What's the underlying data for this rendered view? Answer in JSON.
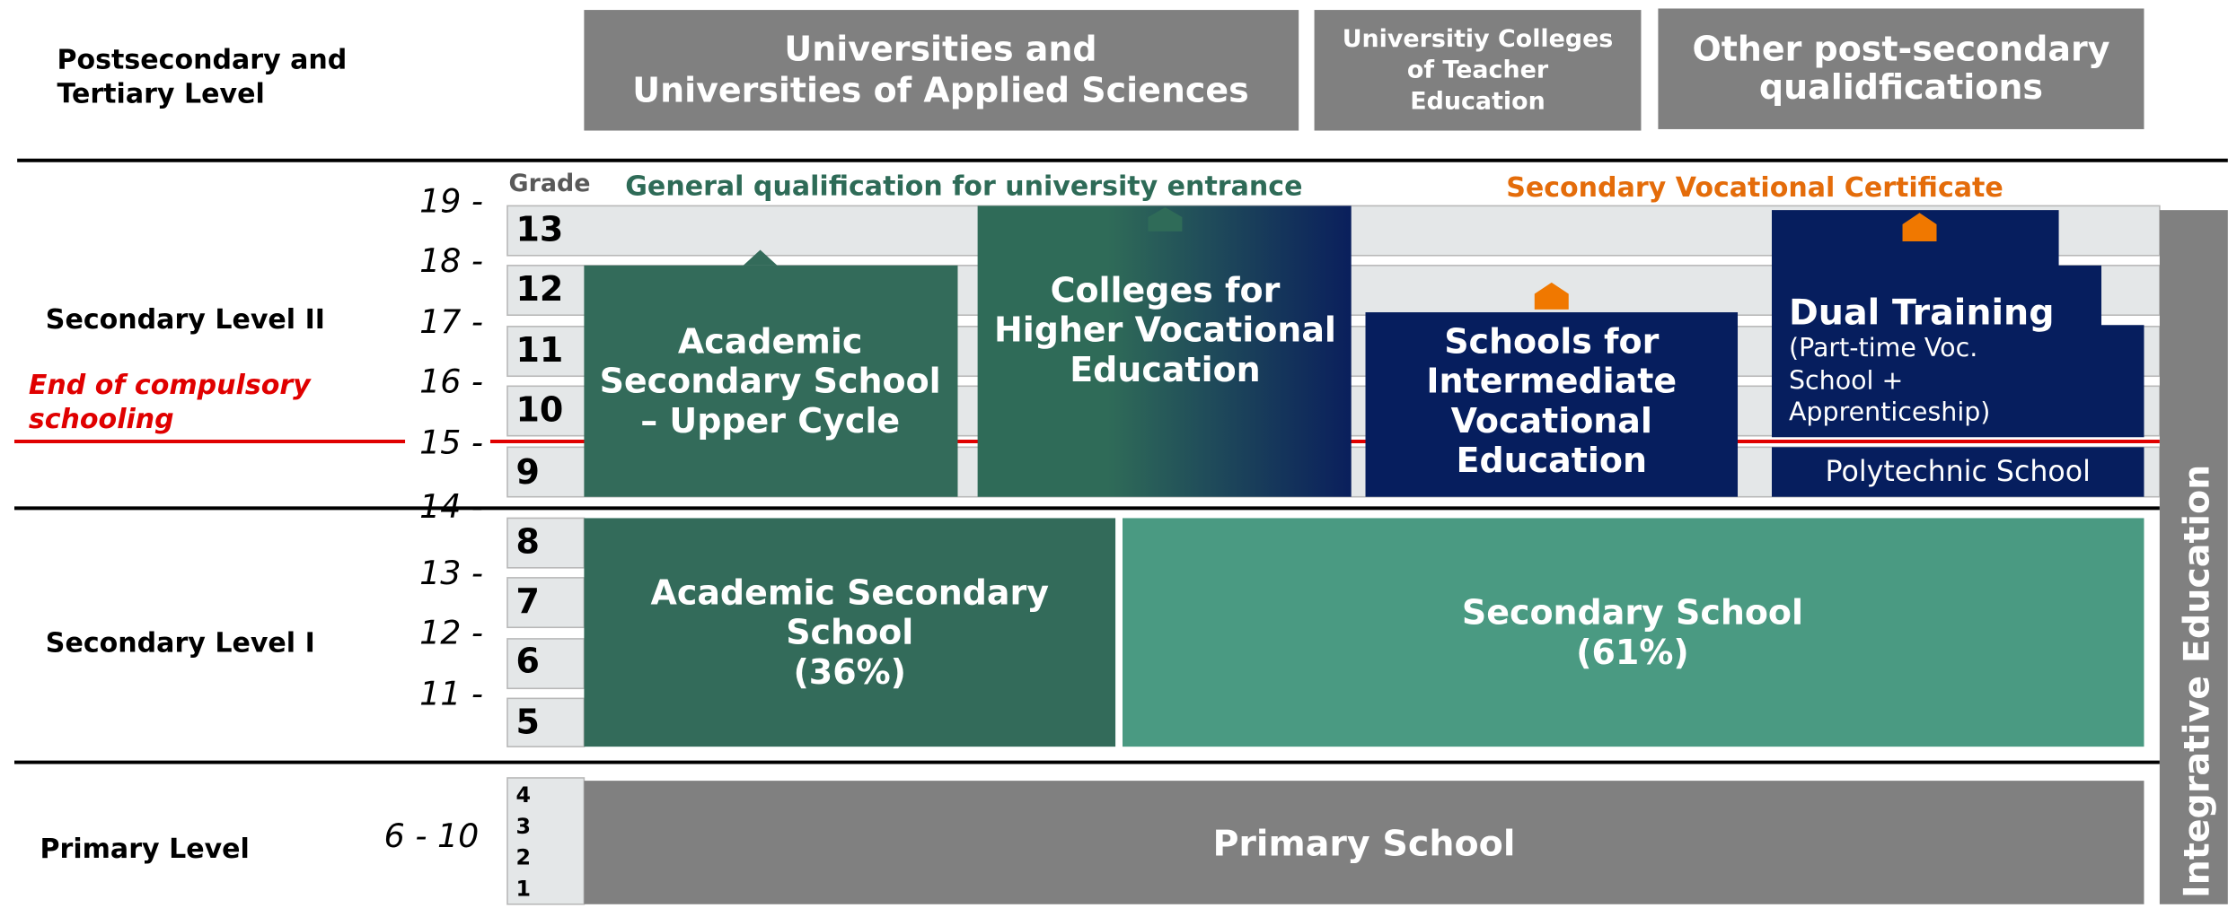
{
  "levels": {
    "tertiary": [
      "Postsecondary and",
      "Tertiary Level"
    ],
    "secondary_2": "Secondary Level II",
    "compulsory": [
      "End of compulsory",
      "schooling"
    ],
    "secondary_1": "Secondary Level I",
    "primary": "Primary Level"
  },
  "ages": [
    "19 -",
    "18 -",
    "17 -",
    "16 -",
    "15 -",
    "14 -",
    "13 -",
    "12 -",
    "11 -",
    "6 - 10"
  ],
  "grade_header": "Grade",
  "grades": [
    "13",
    "12",
    "11",
    "10",
    "9",
    "8",
    "7",
    "6",
    "5"
  ],
  "primary_grades": [
    "4",
    "3",
    "2",
    "1"
  ],
  "qualifications": {
    "general": "General qualification for university entrance",
    "vocational": "Secondary Vocational Certificate"
  },
  "tertiary": [
    [
      "Universities and",
      "Universities of Applied Sciences"
    ],
    [
      "Universitiy Colleges",
      "of Teacher",
      "Education"
    ],
    [
      "Other post-secondary",
      "qualidfications"
    ]
  ],
  "schools": {
    "academic_upper": [
      "Academic",
      "Secondary School",
      "– Upper Cycle"
    ],
    "colleges": [
      "Colleges for",
      "Higher Vocational",
      "Education"
    ],
    "intermediate": [
      "Schools for",
      "Intermediate",
      "Vocational",
      "Education"
    ],
    "dual_title": "Dual Training",
    "dual_detail": [
      "(Part-time Voc.",
      "School +",
      "Apprenticeship)"
    ],
    "polytechnic": "Polytechnic School",
    "academic_lower": [
      "Academic Secondary",
      "School",
      "(36%)"
    ],
    "secondary": [
      "Secondary School",
      "(61%)"
    ],
    "primary": "Primary School",
    "integrative": "Integrative Education"
  }
}
